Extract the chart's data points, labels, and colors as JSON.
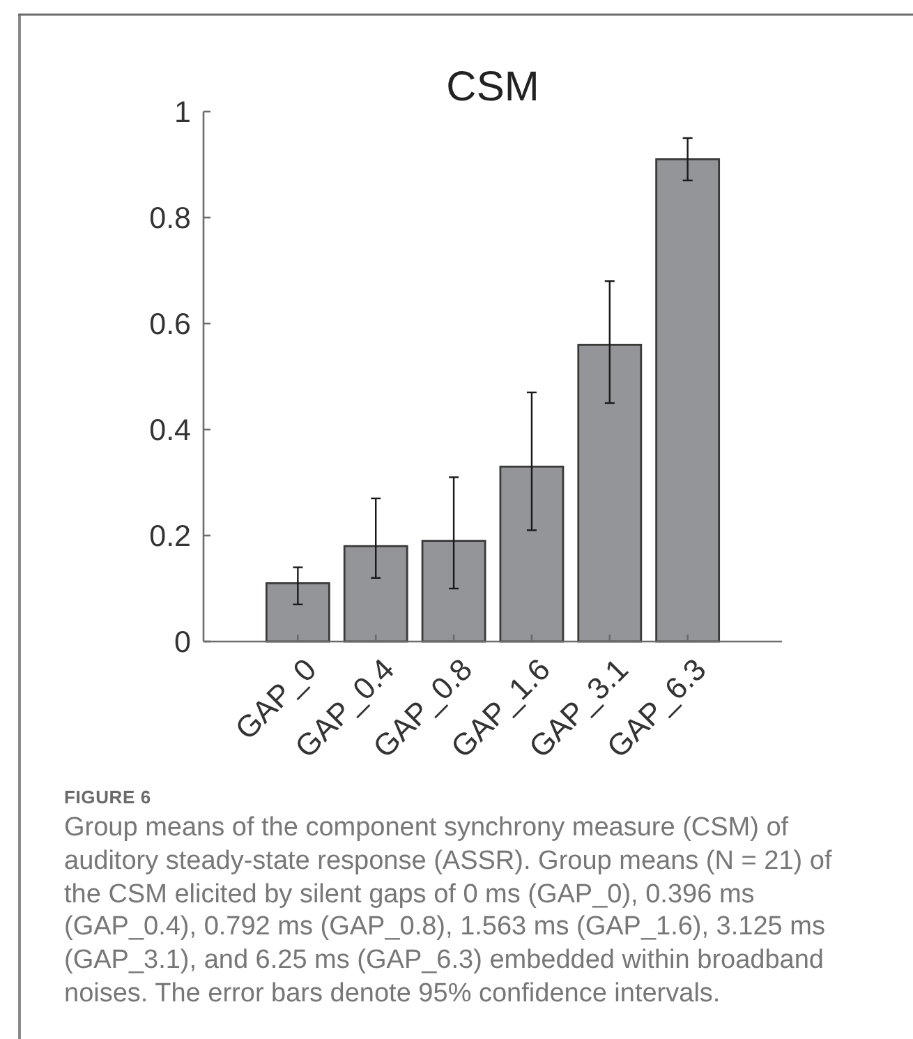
{
  "chart_data": {
    "type": "bar",
    "title": "CSM",
    "categories": [
      "GAP_0",
      "GAP_0.4",
      "GAP_0.8",
      "GAP_1.6",
      "GAP_3.1",
      "GAP_6.3"
    ],
    "values": [
      0.11,
      0.18,
      0.19,
      0.33,
      0.56,
      0.91
    ],
    "errors": [
      [
        0.07,
        0.14
      ],
      [
        0.12,
        0.27
      ],
      [
        0.1,
        0.31
      ],
      [
        0.21,
        0.47
      ],
      [
        0.45,
        0.68
      ],
      [
        0.87,
        0.95
      ]
    ],
    "color": "#939598",
    "ylim": [
      0,
      1
    ],
    "yticks": [
      0,
      0.2,
      0.4,
      0.6,
      0.8,
      1
    ],
    "annotations": [
      "FIGURE 6",
      "Group means of the component synchrony measure (CSM) of auditory steady-state response (ASSR). Group means (N = 21) of the CSM elicited by silent gaps of 0 ms (GAP_0), 0.396 ms (GAP_0.4), 0.792 ms (GAP_0.8), 1.563 ms (GAP_1.6), 3.125 ms (GAP_3.1), and 6.25 ms (GAP_6.3) embedded within broadband noises. The error bars denote 95% confidence intervals."
    ]
  }
}
